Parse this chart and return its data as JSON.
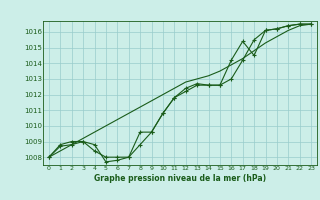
{
  "title": "Graphe pression niveau de la mer (hPa)",
  "background_color": "#cceee8",
  "grid_color": "#99cccc",
  "line_color": "#1a5c1a",
  "marker_color": "#1a5c1a",
  "x_ticks": [
    0,
    1,
    2,
    3,
    4,
    5,
    6,
    7,
    8,
    9,
    10,
    11,
    12,
    13,
    14,
    15,
    16,
    17,
    18,
    19,
    20,
    21,
    22,
    23
  ],
  "ylim": [
    1007.5,
    1016.7
  ],
  "y_ticks": [
    1008,
    1009,
    1010,
    1011,
    1012,
    1013,
    1014,
    1015,
    1016
  ],
  "series1": [
    1008.0,
    1008.7,
    1008.8,
    1009.0,
    1008.8,
    1007.7,
    1007.8,
    1008.0,
    1008.8,
    1009.6,
    1010.8,
    1011.8,
    1012.2,
    1012.6,
    1012.6,
    1012.6,
    1013.0,
    1014.2,
    1015.5,
    1016.1,
    1016.2,
    1016.4,
    1016.5,
    1016.5
  ],
  "series2": [
    1008.0,
    1008.8,
    1009.0,
    1009.0,
    1008.4,
    1008.0,
    1008.0,
    1008.0,
    1009.6,
    1009.6,
    1010.8,
    1011.8,
    1012.4,
    1012.7,
    1012.6,
    1012.6,
    1014.2,
    1015.4,
    1014.5,
    1016.1,
    1016.2,
    1016.4,
    1016.5,
    1016.5
  ],
  "trend": [
    1008.0,
    1008.4,
    1008.8,
    1009.2,
    1009.6,
    1010.0,
    1010.4,
    1010.8,
    1011.2,
    1011.6,
    1012.0,
    1012.4,
    1012.8,
    1013.0,
    1013.2,
    1013.5,
    1013.9,
    1014.3,
    1014.8,
    1015.3,
    1015.7,
    1016.1,
    1016.4,
    1016.5
  ],
  "figsize": [
    3.2,
    2.0
  ],
  "dpi": 100
}
